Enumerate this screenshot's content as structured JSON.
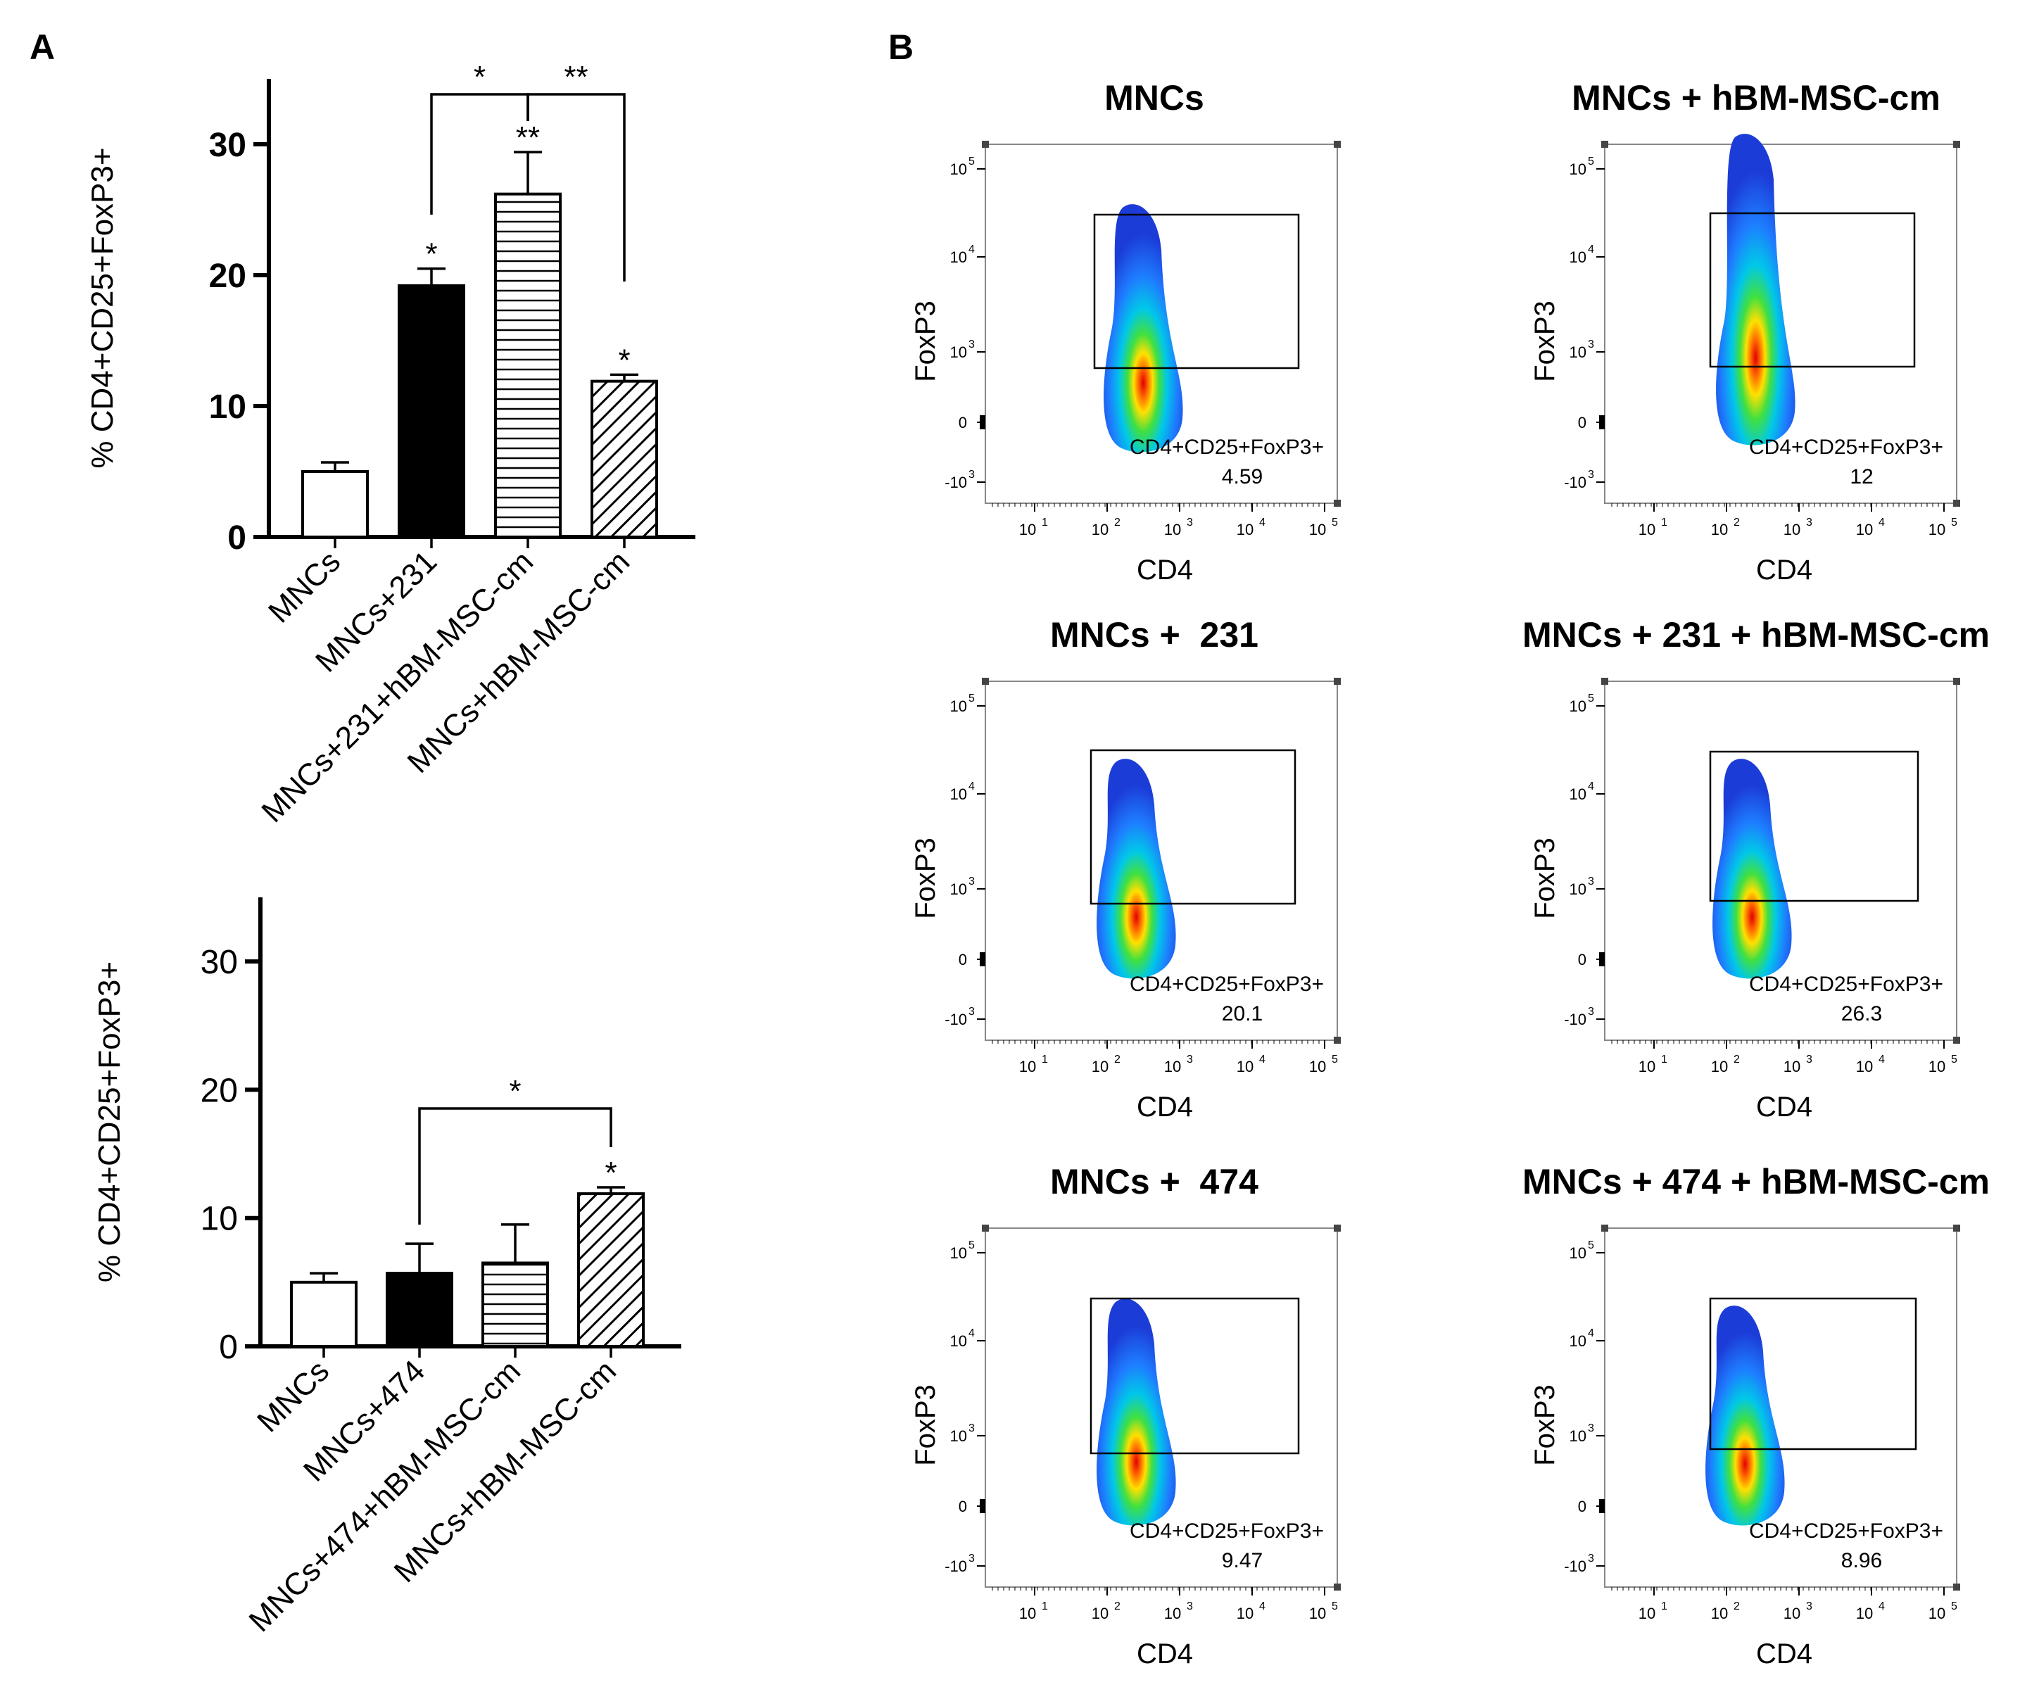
{
  "panel_labels": {
    "a": "A",
    "b": "B"
  },
  "colors": {
    "ink": "#000000",
    "bar_white": "#ffffff",
    "bar_black": "#000000",
    "gate": "#000000"
  },
  "chart_data": [
    {
      "type": "bar",
      "title": "",
      "xlabel": "",
      "ylabel": "% CD4+CD25+FoxP3+",
      "ylim": [
        0,
        35
      ],
      "yticks": [
        "0",
        "10",
        "20",
        "30"
      ],
      "grid": false,
      "categories": [
        "MNCs",
        "MNCs+231",
        "MNCs+231+hBM-MSC-cm",
        "MNCs+hBM-MSC-cm"
      ],
      "values": [
        5.0,
        19.2,
        26.2,
        11.9
      ],
      "errors": [
        0.7,
        1.3,
        3.2,
        0.5
      ],
      "fills": [
        "white",
        "black",
        "horizontal-lines",
        "diagonal-lines"
      ],
      "bar_sig": [
        "",
        "*",
        "**",
        "*"
      ],
      "brackets": [
        {
          "from": 1,
          "to": 2,
          "label": "*"
        },
        {
          "from": 2,
          "to": 3,
          "label": "**"
        }
      ]
    },
    {
      "type": "bar",
      "title": "",
      "xlabel": "",
      "ylabel": "% CD4+CD25+FoxP3+",
      "ylim": [
        0,
        35
      ],
      "yticks": [
        "0",
        "10",
        "20",
        "30"
      ],
      "grid": false,
      "categories": [
        "MNCs",
        "MNCs+474",
        "MNCs+474+hBM-MSC-cm",
        "MNCs+hBM-MSC-cm"
      ],
      "values": [
        5.0,
        5.7,
        6.5,
        11.9
      ],
      "errors": [
        0.7,
        2.3,
        3.0,
        0.5
      ],
      "fills": [
        "white",
        "black",
        "horizontal-lines",
        "diagonal-lines"
      ],
      "bar_sig": [
        "",
        "",
        "",
        "*"
      ],
      "brackets": [
        {
          "from": 1,
          "to": 3,
          "label": "*"
        }
      ]
    }
  ],
  "flow_plots": [
    {
      "title": "MNCs",
      "xlabel": "CD4",
      "ylabel": "FoxP3",
      "gate_label": "CD4+CD25+FoxP3+",
      "gate_value": "4.59"
    },
    {
      "title": "MNCs + hBM-MSC-cm",
      "xlabel": "CD4",
      "ylabel": "FoxP3",
      "gate_label": "CD4+CD25+FoxP3+",
      "gate_value": "12"
    },
    {
      "title": "MNCs +  231",
      "xlabel": "CD4",
      "ylabel": "FoxP3",
      "gate_label": "CD4+CD25+FoxP3+",
      "gate_value": "20.1"
    },
    {
      "title": "MNCs + 231 + hBM-MSC-cm",
      "xlabel": "CD4",
      "ylabel": "FoxP3",
      "gate_label": "CD4+CD25+FoxP3+",
      "gate_value": "26.3"
    },
    {
      "title": "MNCs +  474",
      "xlabel": "CD4",
      "ylabel": "FoxP3",
      "gate_label": "CD4+CD25+FoxP3+",
      "gate_value": "9.47"
    },
    {
      "title": "MNCs + 474 + hBM-MSC-cm",
      "xlabel": "CD4",
      "ylabel": "FoxP3",
      "gate_label": "CD4+CD25+FoxP3+",
      "gate_value": "8.96"
    }
  ],
  "flow_axis": {
    "x_ticks": [
      "10",
      "10",
      "10",
      "10",
      "10"
    ],
    "x_exps": [
      "1",
      "2",
      "3",
      "4",
      "5"
    ],
    "y_ticks": [
      "-10",
      "0",
      "10",
      "10",
      "10"
    ],
    "y_exps": [
      "3",
      "",
      "3",
      "4",
      "5"
    ]
  }
}
